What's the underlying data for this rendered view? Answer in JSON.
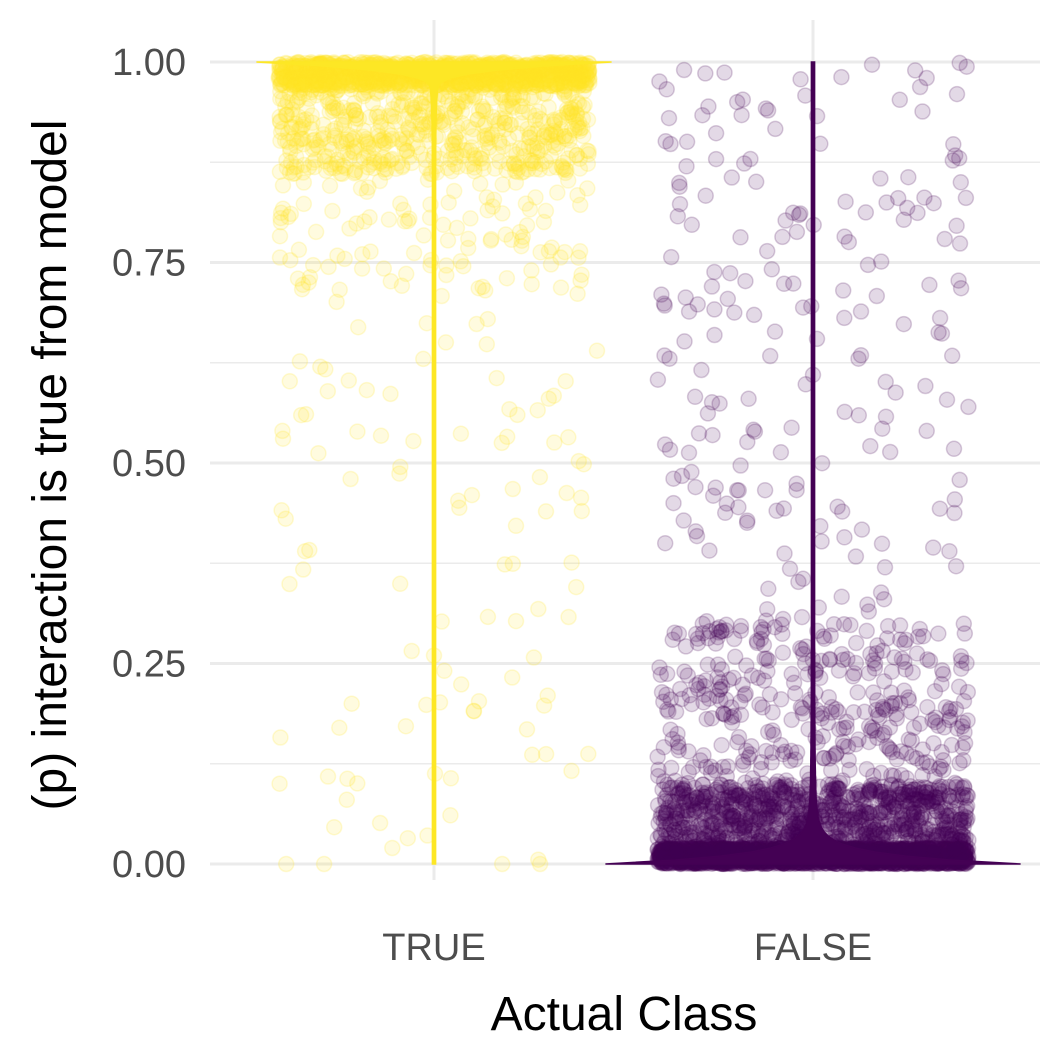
{
  "chart_data": {
    "type": "scatter",
    "subtype": "jittered points with violin overlay",
    "title": "",
    "xlabel": "Actual Class",
    "ylabel": "(p) interaction is true from model",
    "categories": [
      "TRUE",
      "FALSE"
    ],
    "ylim": [
      0,
      1
    ],
    "y_ticks": [
      "0.00",
      "0.25",
      "0.50",
      "0.75",
      "1.00"
    ],
    "grid": true,
    "legend": "none",
    "series": [
      {
        "category": "TRUE",
        "color": "#FDE725",
        "point_opacity": 0.15,
        "n_points_approx": 2000,
        "summary": "most predicted probabilities between 0.85 and 1.00; sparse tail down to 0.00",
        "violin": "very thin spike from 0 to 1 widening at 1.00",
        "sample_points": [
          {
            "x_jitter": -0.39,
            "y": 0.0
          },
          {
            "x_jitter": -0.29,
            "y": 0.0
          },
          {
            "x_jitter": 0.18,
            "y": 0.0
          },
          {
            "x_jitter": 0.28,
            "y": 0.0
          },
          {
            "x_jitter": -0.23,
            "y": 0.08
          },
          {
            "x_jitter": -0.11,
            "y": 0.02
          },
          {
            "x_jitter": -0.25,
            "y": 0.17
          },
          {
            "x_jitter": -0.34,
            "y": 0.39
          },
          {
            "x_jitter": 0.0,
            "y": 0.26
          },
          {
            "x_jitter": 0.1,
            "y": 0.46
          },
          {
            "x_jitter": 0.3,
            "y": 0.21
          },
          {
            "x_jitter": 0.39,
            "y": 0.44
          },
          {
            "x_jitter": -0.4,
            "y": 0.54
          },
          {
            "x_jitter": -0.22,
            "y": 0.48
          },
          {
            "x_jitter": 0.22,
            "y": 0.56
          },
          {
            "x_jitter": -0.3,
            "y": 0.62
          },
          {
            "x_jitter": 0.43,
            "y": 0.64
          }
        ]
      },
      {
        "category": "FALSE",
        "color": "#440154",
        "point_opacity": 0.15,
        "n_points_approx": 4000,
        "summary": "most predicted probabilities between 0.00 and 0.15; sparse tail up to 1.00",
        "violin": "very thin spike from 0 to 1 widening at 0.00",
        "sample_points": [
          {
            "x_jitter": -0.38,
            "y": 0.93
          },
          {
            "x_jitter": -0.34,
            "y": 0.99
          },
          {
            "x_jitter": -0.2,
            "y": 0.95
          },
          {
            "x_jitter": 0.38,
            "y": 0.96
          },
          {
            "x_jitter": 0.39,
            "y": 0.85
          },
          {
            "x_jitter": 0.3,
            "y": 0.98
          },
          {
            "x_jitter": -0.4,
            "y": 0.71
          },
          {
            "x_jitter": -0.17,
            "y": 0.58
          },
          {
            "x_jitter": 0.0,
            "y": 0.61
          },
          {
            "x_jitter": 0.3,
            "y": 0.54
          },
          {
            "x_jitter": 0.41,
            "y": 0.57
          },
          {
            "x_jitter": -0.39,
            "y": 0.4
          },
          {
            "x_jitter": 0.19,
            "y": 0.37
          },
          {
            "x_jitter": 0.36,
            "y": 0.39
          },
          {
            "x_jitter": -0.31,
            "y": 0.47
          },
          {
            "x_jitter": 0.12,
            "y": 0.63
          }
        ]
      }
    ]
  }
}
